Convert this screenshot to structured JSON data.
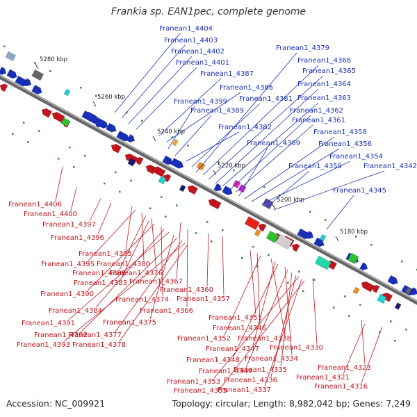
{
  "title": "Frankia sp. EAN1pec, complete genome",
  "footer": {
    "accession": "Accession: NC_009921",
    "summary": "Topology: circular; Length: 8,982,042 bp; Genes: 7,249"
  },
  "ticks": [
    "5280 kbp",
    "5260 kbp",
    "5240 kbp",
    "5220 kbp",
    "5200 kbp",
    "5180 kbp"
  ],
  "forward_labels": [
    "Franean1_4404",
    "Franean1_4403",
    "Franean1_4402",
    "Franean1_4401",
    "Franean1_4387",
    "Franean1_4386",
    "Franean1_4399",
    "Franean1_4389",
    "Franean1_4382",
    "Franean1_4381",
    "Franean1_4379",
    "Franean1_4368",
    "Franean1_4365",
    "Franean1_4364",
    "Franean1_4363",
    "Franean1_4362",
    "Franean1_4361",
    "Franean1_4369",
    "Franean1_4358",
    "Franean1_4356",
    "Franean1_4354",
    "Franean1_4359",
    "Franean1_4342",
    "Franean1_4345"
  ],
  "reverse_labels": [
    "Franean1_4406",
    "Franean1_4400",
    "Franean1_4397",
    "Franean1_4396",
    "Franean1_4385",
    "Franean1_4395",
    "Franean1_4380",
    "Franean1_4388",
    "Franean1_4376",
    "Franean1_4383",
    "Franean1_4367",
    "Franean1_4390",
    "Franean1_4374",
    "Franean1_4384",
    "Franean1_4366",
    "Franean1_4360",
    "Franean1_4357",
    "Franean1_4391",
    "Franean1_4375",
    "Franean1_4392",
    "Franean1_4377",
    "Franean1_4393",
    "Franean1_4378",
    "Franean1_4351",
    "Franean1_4346",
    "Franean1_4352",
    "Franean1_4338",
    "Franean1_4347",
    "Franean1_4330",
    "Franean1_4348",
    "Franean1_4334",
    "Franean1_4349",
    "Franean1_4335",
    "Franean1_4323",
    "Franean1_4336",
    "Franean1_4353",
    "Franean1_4321",
    "Franean1_4337",
    "Franean1_4355",
    "Franean1_4316"
  ],
  "colors": {
    "forward": "#1a2fb8",
    "reverse": "#c2141c",
    "backbone": "#888888",
    "dots": "#2a8a2a"
  }
}
